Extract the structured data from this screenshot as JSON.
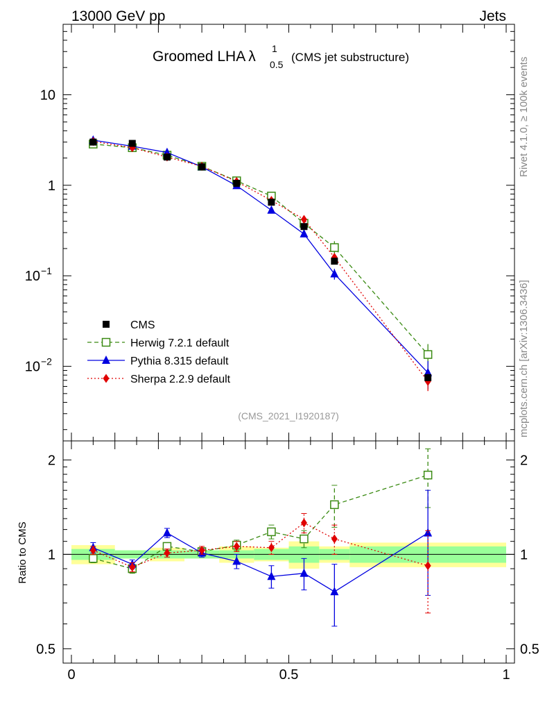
{
  "header": {
    "left": "13000 GeV pp",
    "right": "Jets"
  },
  "side_labels": {
    "rivet": "Rivet 4.1.0, ≥ 100k events",
    "mcplots": "mcplots.cern.ch [arXiv:1306.3436]"
  },
  "analysis_id": "(CMS_2021_I1920187)",
  "chart_data": {
    "type": "line",
    "title": "Groomed LHA",
    "title_symbol": "λ",
    "title_superscript": "1",
    "title_subscript": "0.5",
    "title_suffix": "(CMS jet substructure)",
    "x_edges": [
      0.0,
      0.1,
      0.18,
      0.26,
      0.34,
      0.42,
      0.5,
      0.57,
      0.64,
      1.0
    ],
    "x": [
      0.05,
      0.14,
      0.22,
      0.3,
      0.38,
      0.46,
      0.535,
      0.605,
      0.82
    ],
    "xlim": [
      0,
      1
    ],
    "ylim_main": [
      0.0015,
      60
    ],
    "ylim_ratio": [
      0.45,
      2.3
    ],
    "x_ticks": [
      "0",
      "0.5",
      "1"
    ],
    "y_ticks_main": [
      {
        "base": "10",
        "exp": "",
        "value": 10
      },
      {
        "base": "1",
        "exp": "",
        "value": 1
      },
      {
        "base": "10",
        "exp": "−1",
        "value": 0.1
      },
      {
        "base": "10",
        "exp": "−2",
        "value": 0.01
      }
    ],
    "y_ticks_ratio": [
      "0.5",
      "1",
      "2"
    ],
    "ratio_ylabel": "Ratio to CMS",
    "data": {
      "name": "CMS",
      "values": [
        3.0,
        2.9,
        2.05,
        1.6,
        1.05,
        0.65,
        0.35,
        0.145,
        0.0075
      ],
      "stat_band": [
        0.04,
        0.03,
        0.03,
        0.03,
        0.03,
        0.04,
        0.06,
        0.04,
        0.06
      ],
      "total_band": [
        0.07,
        0.03,
        0.05,
        0.03,
        0.06,
        0.05,
        0.1,
        0.06,
        0.09
      ]
    },
    "series": [
      {
        "name": "Herwig 7.2.1 default",
        "color": "#3a8a12",
        "marker": "open-square",
        "dash": "6,4",
        "values": [
          2.85,
          2.6,
          2.15,
          1.62,
          1.12,
          0.76,
          0.38,
          0.205,
          0.0135
        ],
        "ratio": [
          0.97,
          0.9,
          1.06,
          1.02,
          1.07,
          1.18,
          1.12,
          1.44,
          1.79
        ],
        "ratio_err": [
          0.03,
          0.03,
          0.03,
          0.03,
          0.04,
          0.06,
          0.07,
          0.22,
          0.38
        ]
      },
      {
        "name": "Pythia 8.315 default",
        "color": "#0000e0",
        "marker": "triangle",
        "dash": "",
        "values": [
          3.15,
          2.7,
          2.3,
          1.6,
          0.99,
          0.53,
          0.29,
          0.105,
          0.0085
        ],
        "ratio": [
          1.05,
          0.93,
          1.17,
          1.01,
          0.95,
          0.85,
          0.87,
          0.76,
          1.17
        ],
        "ratio_err": [
          0.04,
          0.03,
          0.04,
          0.03,
          0.05,
          0.07,
          0.1,
          0.17,
          0.43
        ]
      },
      {
        "name": "Sherpa 2.2.9 default",
        "color": "#e00000",
        "marker": "diamond",
        "dash": "2,3",
        "values": [
          3.05,
          2.6,
          2.05,
          1.62,
          1.1,
          0.68,
          0.42,
          0.16,
          0.0068
        ],
        "ratio": [
          1.03,
          0.91,
          1.01,
          1.03,
          1.06,
          1.05,
          1.26,
          1.12,
          0.92
        ],
        "ratio_err": [
          0.03,
          0.03,
          0.03,
          0.03,
          0.04,
          0.05,
          0.09,
          0.12,
          0.27
        ]
      }
    ],
    "legend_position": "lower-left"
  }
}
